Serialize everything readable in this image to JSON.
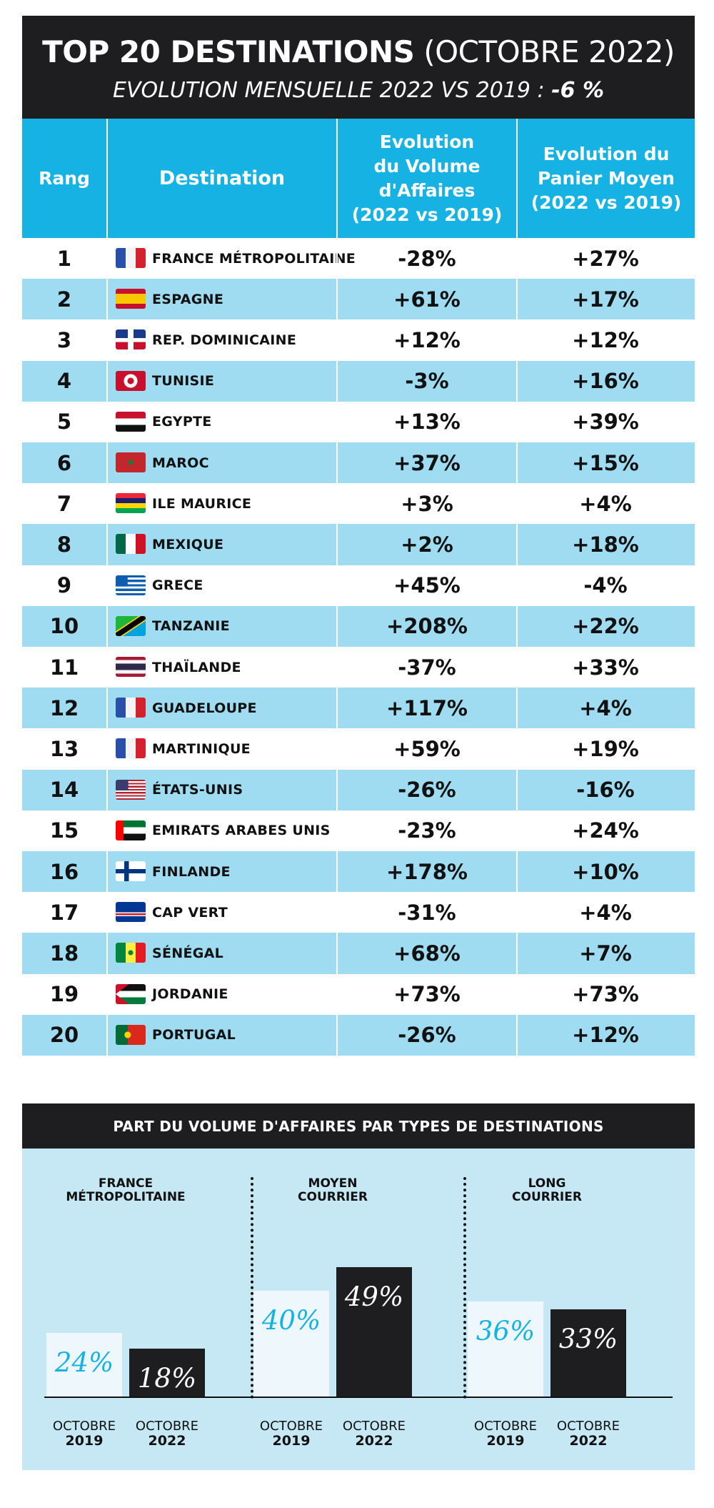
{
  "header": {
    "title_bold": "TOP 20 DESTINATIONS",
    "title_rest": " (OCTOBRE 2022)",
    "subtitle": "EVOLUTION MENSUELLE 2022 VS 2019 : ",
    "subtitle_value": " -6 %"
  },
  "columns": {
    "rank": "Rang",
    "destination": "Destination",
    "volume": [
      "Evolution",
      "du Volume",
      "d'Affaires",
      "(2022 vs 2019)"
    ],
    "panier": [
      "Evolution du",
      "Panier Moyen",
      "(2022 vs 2019)"
    ]
  },
  "rows": [
    {
      "rank": "1",
      "name": "FRANCE MÉTROPOLITAINE",
      "flag": "france-flag",
      "volume": "-28%",
      "panier": "+27%"
    },
    {
      "rank": "2",
      "name": "ESPAGNE",
      "flag": "spain-flag",
      "volume": "+61%",
      "panier": "+17%"
    },
    {
      "rank": "3",
      "name": "REP. DOMINICAINE",
      "flag": "dominican-rep-flag",
      "volume": "+12%",
      "panier": "+12%"
    },
    {
      "rank": "4",
      "name": "TUNISIE",
      "flag": "tunisia-flag",
      "volume": "-3%",
      "panier": "+16%"
    },
    {
      "rank": "5",
      "name": "EGYPTE",
      "flag": "egypt-flag",
      "volume": "+13%",
      "panier": "+39%"
    },
    {
      "rank": "6",
      "name": "MAROC",
      "flag": "morocco-flag",
      "volume": "+37%",
      "panier": "+15%"
    },
    {
      "rank": "7",
      "name": "ILE MAURICE",
      "flag": "mauritius-flag",
      "volume": "+3%",
      "panier": "+4%"
    },
    {
      "rank": "8",
      "name": "MEXIQUE",
      "flag": "mexico-flag",
      "volume": "+2%",
      "panier": "+18%"
    },
    {
      "rank": "9",
      "name": "GRECE",
      "flag": "greece-flag",
      "volume": "+45%",
      "panier": "-4%"
    },
    {
      "rank": "10",
      "name": "TANZANIE",
      "flag": "tanzania-flag",
      "volume": "+208%",
      "panier": "+22%"
    },
    {
      "rank": "11",
      "name": "THAÏLANDE",
      "flag": "thailand-flag",
      "volume": "-37%",
      "panier": "+33%"
    },
    {
      "rank": "12",
      "name": "GUADELOUPE",
      "flag": "france-flag",
      "volume": "+117%",
      "panier": "+4%"
    },
    {
      "rank": "13",
      "name": "MARTINIQUE",
      "flag": "france-flag",
      "volume": "+59%",
      "panier": "+19%"
    },
    {
      "rank": "14",
      "name": "ÉTATS-UNIS",
      "flag": "usa-flag",
      "volume": "-26%",
      "panier": "-16%"
    },
    {
      "rank": "15",
      "name": "EMIRATS ARABES UNIS",
      "flag": "uae-flag",
      "volume": "-23%",
      "panier": "+24%"
    },
    {
      "rank": "16",
      "name": "FINLANDE",
      "flag": "finland-flag",
      "volume": "+178%",
      "panier": "+10%"
    },
    {
      "rank": "17",
      "name": "CAP VERT",
      "flag": "cape-verde-flag",
      "volume": "-31%",
      "panier": "+4%"
    },
    {
      "rank": "18",
      "name": "SÉNÉGAL",
      "flag": "senegal-flag",
      "volume": "+68%",
      "panier": "+7%"
    },
    {
      "rank": "19",
      "name": "JORDANIE",
      "flag": "jordan-flag",
      "volume": "+73%",
      "panier": "+73%"
    },
    {
      "rank": "20",
      "name": "PORTUGAL",
      "flag": "portugal-flag",
      "volume": "-26%",
      "panier": "+12%"
    }
  ],
  "colors": {
    "header_bg": "#1e1e20",
    "accent": "#16b2e4",
    "row_alt": "#9fdcf1",
    "panel_bg": "#c6e8f5",
    "bar_2019": "#eef8fc",
    "bar_2022": "#1e1e20"
  },
  "chart_data": {
    "type": "bar",
    "title": "PART DU VOLUME D'AFFAIRES PAR TYPES DE DESTINATIONS",
    "groups": [
      {
        "label": [
          "FRANCE",
          "MÉTROPOLITAINE"
        ],
        "values": [
          24,
          18
        ]
      },
      {
        "label": [
          "MOYEN",
          "COURRIER"
        ],
        "values": [
          40,
          49
        ]
      },
      {
        "label": [
          "LONG",
          "COURRIER"
        ],
        "values": [
          36,
          33
        ]
      }
    ],
    "series": [
      {
        "name_line1": "OCTOBRE",
        "name_line2": "2019"
      },
      {
        "name_line1": "OCTOBRE",
        "name_line2": "2022"
      }
    ],
    "value_suffix": "%",
    "ylim": [
      0,
      100
    ],
    "legend": "none"
  }
}
